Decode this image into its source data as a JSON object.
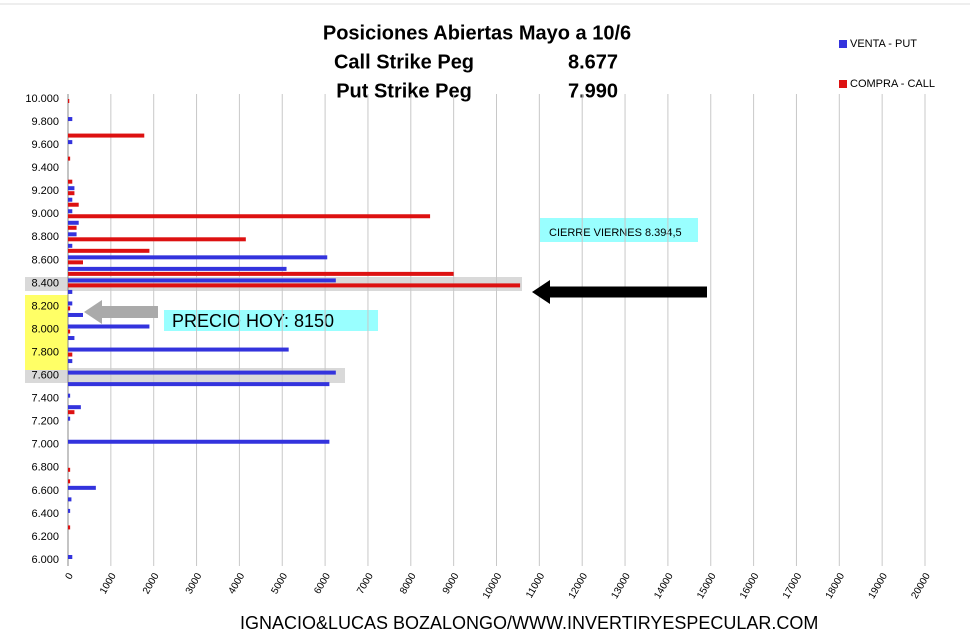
{
  "chart_data": {
    "type": "hbar",
    "title": "Posiciones Abiertas Mayo a 10/6",
    "subtitle_lines": [
      [
        "Call Strike Peg",
        "8.677"
      ],
      [
        "Put Strike Peg",
        "7.990"
      ]
    ],
    "annotations": [
      "CIERRE VIERNES  8.394,5",
      "PRECIO HOY: 8150"
    ],
    "footer": "IGNACIO&LUCAS BOZALONGO/WWW.INVERTIRYESPECULAR.COM",
    "categories": [
      "10.000",
      null,
      "9.800",
      null,
      "9.600",
      null,
      "9.400",
      null,
      "9.200",
      null,
      "9.000",
      null,
      "8.800",
      null,
      "8.600",
      null,
      "8.400",
      null,
      "8.200",
      null,
      "8.000",
      null,
      "7.800",
      null,
      "7.600",
      null,
      "7.400",
      null,
      "7.200",
      null,
      "7.000",
      null,
      "6.800",
      null,
      "6.600",
      null,
      "6.400",
      null,
      "6.200",
      null,
      "6.000"
    ],
    "series": [
      {
        "name": "VENTA - PUT",
        "color": "#3333dd",
        "values": [
          0,
          0,
          100,
          0,
          100,
          0,
          0,
          0,
          150,
          100,
          100,
          250,
          200,
          100,
          6050,
          5100,
          6250,
          100,
          100,
          350,
          1900,
          150,
          5150,
          100,
          6250,
          6100,
          50,
          300,
          50,
          0,
          6100,
          0,
          0,
          0,
          650,
          80,
          50,
          0,
          0,
          0,
          100
        ]
      },
      {
        "name": "COMPRA - CALL",
        "color": "#dd1111",
        "values": [
          30,
          0,
          0,
          1780,
          0,
          50,
          0,
          100,
          150,
          250,
          8450,
          200,
          4150,
          1900,
          350,
          9000,
          10550,
          0,
          50,
          0,
          50,
          0,
          100,
          0,
          0,
          0,
          0,
          150,
          0,
          0,
          0,
          0,
          50,
          50,
          0,
          0,
          0,
          50,
          0,
          0,
          0
        ]
      }
    ],
    "xlim": [
      0,
      20000
    ],
    "xticks": [
      0,
      1000,
      2000,
      3000,
      4000,
      5000,
      6000,
      7000,
      8000,
      9000,
      10000,
      11000,
      12000,
      13000,
      14000,
      15000,
      16000,
      17000,
      18000,
      19000,
      20000
    ],
    "grid": true
  }
}
